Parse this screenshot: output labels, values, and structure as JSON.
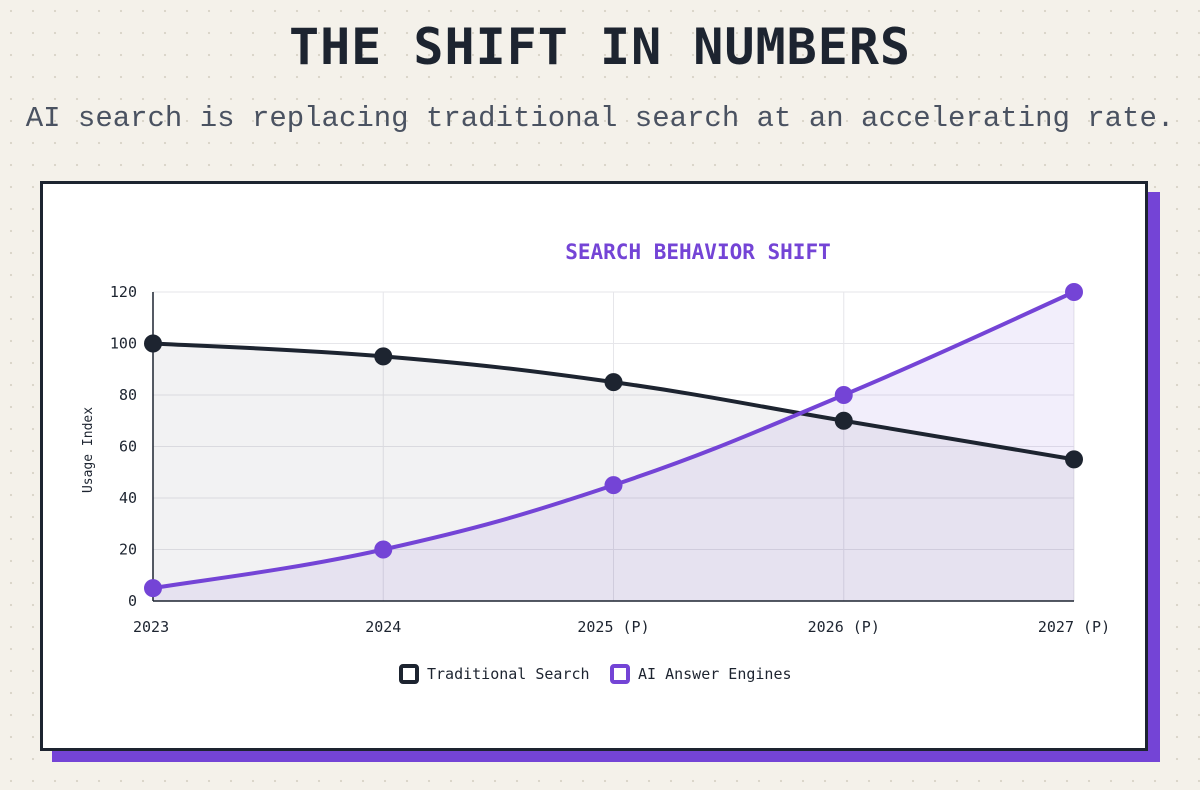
{
  "header": {
    "title": "THE SHIFT IN NUMBERS",
    "subtitle": "AI search is replacing traditional search at an accelerating rate."
  },
  "colors": {
    "accent": "#7444d6",
    "dark": "#1d2430",
    "background": "#f4f1ea"
  },
  "chart_data": {
    "type": "line",
    "title": "SEARCH BEHAVIOR SHIFT",
    "xlabel": "",
    "ylabel": "Usage Index",
    "categories": [
      "2023",
      "2024",
      "2025 (P)",
      "2026 (P)",
      "2027 (P)"
    ],
    "ylim": [
      0,
      120
    ],
    "yticks": [
      0,
      20,
      40,
      60,
      80,
      100,
      120
    ],
    "grid": true,
    "legend_position": "bottom",
    "series": [
      {
        "name": "Traditional Search",
        "values": [
          100,
          95,
          85,
          70,
          55
        ],
        "color": "#1d2430",
        "fill": true
      },
      {
        "name": "AI Answer Engines",
        "values": [
          5,
          20,
          45,
          80,
          120
        ],
        "color": "#7444d6",
        "fill": true
      }
    ]
  }
}
